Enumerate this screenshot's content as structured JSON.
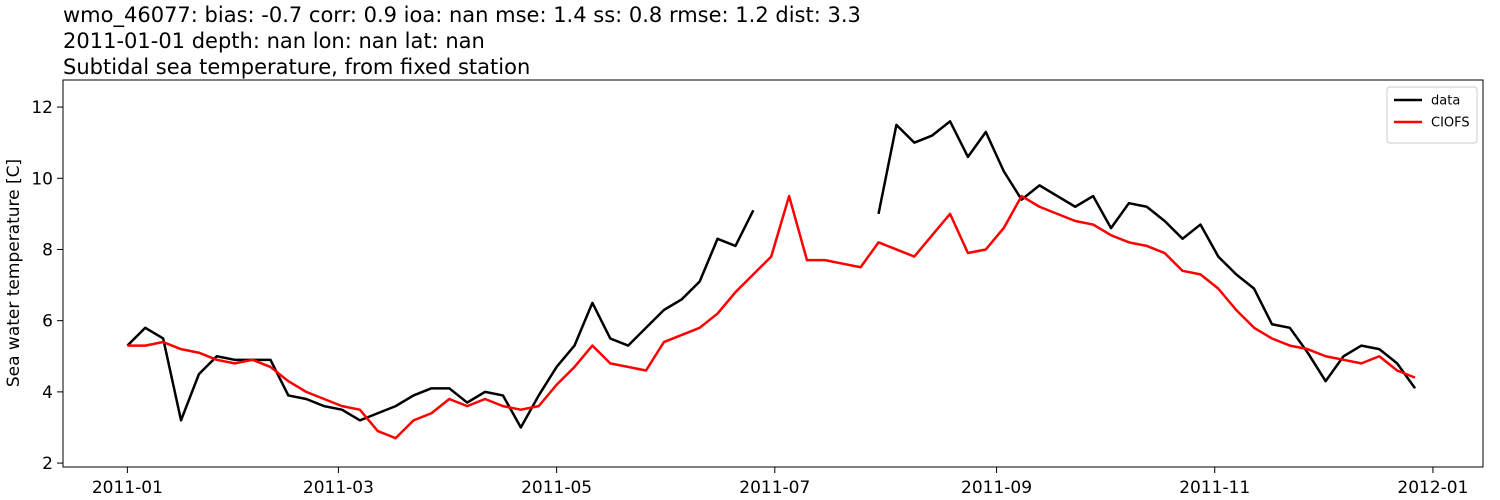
{
  "chart_data": {
    "type": "line",
    "title": [
      "wmo_46077: bias: -0.7  corr: 0.9  ioa: nan  mse: 1.4  ss: 0.8  rmse: 1.2  dist: 3.3",
      "2011-01-01 depth: nan lon: nan lat: nan",
      "Subtidal sea temperature, from fixed station"
    ],
    "y_label": "Sea water temperature [C]",
    "x": [
      0,
      5,
      10,
      15,
      20,
      25,
      30,
      35,
      40,
      45,
      50,
      55,
      60,
      65,
      70,
      75,
      80,
      85,
      90,
      95,
      100,
      105,
      110,
      115,
      120,
      125,
      130,
      135,
      140,
      145,
      150,
      155,
      160,
      165,
      170,
      175,
      180,
      185,
      190,
      195,
      200,
      205,
      210,
      215,
      220,
      225,
      230,
      235,
      240,
      245,
      250,
      255,
      260,
      265,
      270,
      275,
      280,
      285,
      290,
      295,
      300,
      305,
      310,
      315,
      320,
      325,
      330,
      335,
      340,
      345,
      350,
      355,
      360
    ],
    "series": [
      {
        "name": "data",
        "color": "#000000",
        "values": [
          5.3,
          5.8,
          5.5,
          3.2,
          4.5,
          5.0,
          4.9,
          4.9,
          4.9,
          3.9,
          3.8,
          3.6,
          3.5,
          3.2,
          3.4,
          3.6,
          3.9,
          4.1,
          4.1,
          3.7,
          4.0,
          3.9,
          3.0,
          3.9,
          4.7,
          5.3,
          6.5,
          5.5,
          5.3,
          5.8,
          6.3,
          6.6,
          7.1,
          8.3,
          8.1,
          9.1,
          null,
          null,
          null,
          null,
          null,
          null,
          9.0,
          11.5,
          11.0,
          11.2,
          11.6,
          10.6,
          11.3,
          10.2,
          9.4,
          9.8,
          9.5,
          9.2,
          9.5,
          8.6,
          9.3,
          9.2,
          8.8,
          8.3,
          8.7,
          7.8,
          7.3,
          6.9,
          5.9,
          5.8,
          5.1,
          4.3,
          5.0,
          5.3,
          5.2,
          4.8,
          4.1
        ]
      },
      {
        "name": "CIOFS",
        "color": "#ff0000",
        "values": [
          5.3,
          5.3,
          5.4,
          5.2,
          5.1,
          4.9,
          4.8,
          4.9,
          4.7,
          4.3,
          4.0,
          3.8,
          3.6,
          3.5,
          2.9,
          2.7,
          3.2,
          3.4,
          3.8,
          3.6,
          3.8,
          3.6,
          3.5,
          3.6,
          4.2,
          4.7,
          5.3,
          4.8,
          4.7,
          4.6,
          5.4,
          5.6,
          5.8,
          6.2,
          6.8,
          7.3,
          7.8,
          9.5,
          7.7,
          7.7,
          7.6,
          7.5,
          8.2,
          8.0,
          7.8,
          8.4,
          9.0,
          7.9,
          8.0,
          8.6,
          9.5,
          9.2,
          9.0,
          8.8,
          8.7,
          8.4,
          8.2,
          8.1,
          7.9,
          7.4,
          7.3,
          6.9,
          6.3,
          5.8,
          5.5,
          5.3,
          5.2,
          5.0,
          4.9,
          4.8,
          5.0,
          4.6,
          4.4
        ]
      }
    ],
    "xlim": [
      -18,
      379
    ],
    "xticks": [
      {
        "value": 0,
        "label": "2011-01"
      },
      {
        "value": 59,
        "label": "2011-03"
      },
      {
        "value": 120,
        "label": "2011-05"
      },
      {
        "value": 181,
        "label": "2011-07"
      },
      {
        "value": 243,
        "label": "2011-09"
      },
      {
        "value": 304,
        "label": "2011-11"
      },
      {
        "value": 365,
        "label": "2012-01"
      }
    ],
    "ylim": [
      1.89,
      12.76
    ],
    "yticks": [
      2,
      4,
      6,
      8,
      10,
      12
    ],
    "legend": "upper right"
  }
}
